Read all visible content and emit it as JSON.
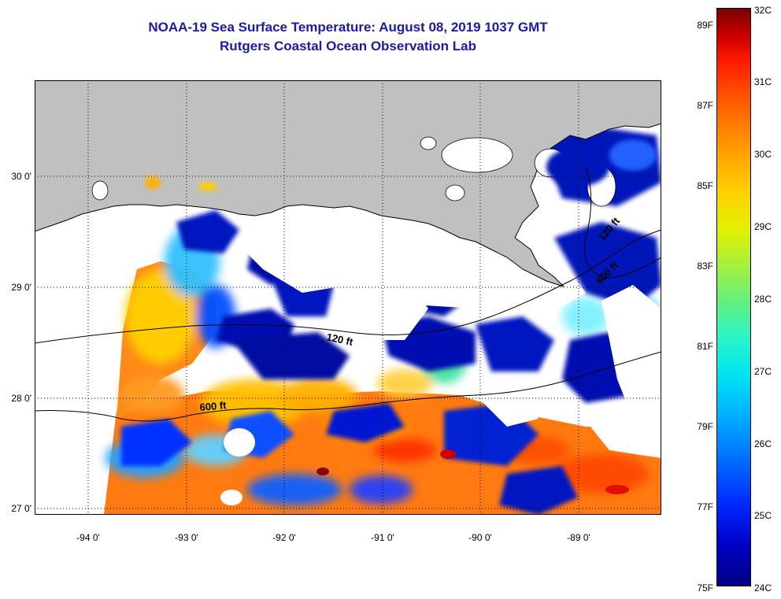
{
  "title": {
    "line1": "NOAA-19 Sea Surface Temperature:  August 08, 2019 1037 GMT",
    "line2": "Rutgers Coastal Ocean Observation Lab"
  },
  "map": {
    "lat_labels": [
      "30 0'",
      "29 0'",
      "28 0'",
      "27 0'"
    ],
    "lon_labels": [
      "-94 0'",
      "-93 0'",
      "-92 0'",
      "-91 0'",
      "-90 0'",
      "-89 0'"
    ],
    "contour_labels": [
      "120 ft",
      "600 ft",
      "120 ft",
      "600 ft"
    ],
    "colors": {
      "land": "#c0c0c0",
      "no_data": "#ffffff",
      "grid": "#000000"
    }
  },
  "colorbar": {
    "celsius_labels": [
      "32C",
      "31C",
      "30C",
      "29C",
      "28C",
      "27C",
      "26C",
      "25C",
      "24C"
    ],
    "fahrenheit_labels": [
      "89F",
      "87F",
      "85F",
      "83F",
      "81F",
      "79F",
      "77F",
      "75F"
    ],
    "min_c": 24,
    "max_c": 32
  }
}
